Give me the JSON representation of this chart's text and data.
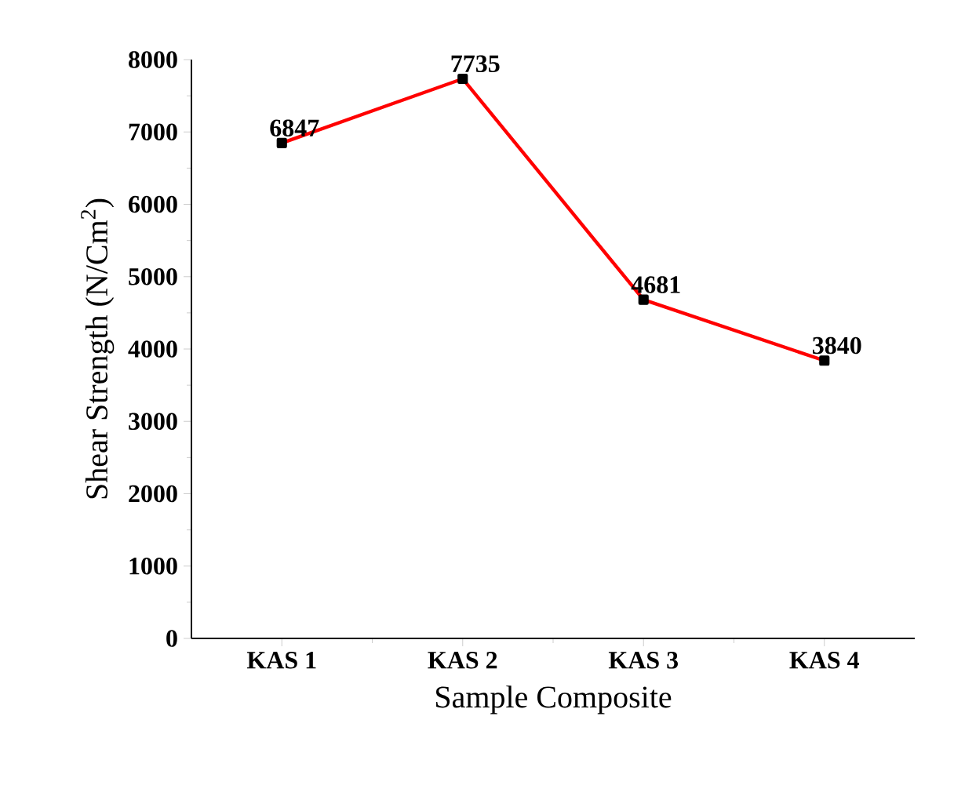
{
  "chart_data": {
    "type": "line",
    "xlabel": "Sample Composite",
    "ylabel": "Shear Strength (N/Cm$^{2}$)",
    "categories": [
      "KAS 1",
      "KAS 2",
      "KAS 3",
      "KAS 4"
    ],
    "values": [
      6847,
      7735,
      4681,
      3840
    ],
    "color": "#ff0000",
    "marker": "square",
    "line_style": "solid",
    "data_labels": true,
    "ylim": [
      0,
      8000
    ],
    "yticks": [
      0,
      1000,
      2000,
      3000,
      4000,
      5000,
      6000,
      7000,
      8000
    ]
  }
}
